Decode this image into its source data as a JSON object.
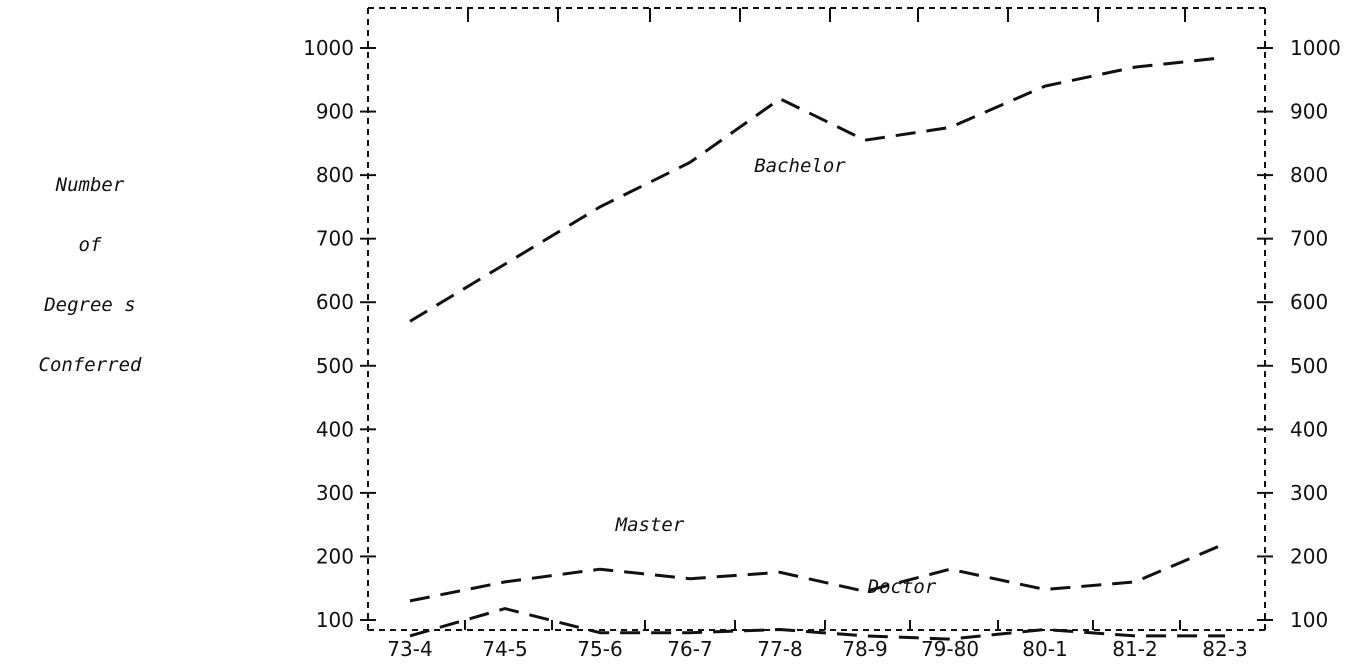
{
  "chart_data": {
    "type": "line",
    "title": "",
    "xlabel": "",
    "ylabel_lines": [
      "Number",
      "of",
      "Degree s",
      "Conferred"
    ],
    "categories": [
      "73-4",
      "74-5",
      "75-6",
      "76-7",
      "77-8",
      "78-9",
      "79-80",
      "80-1",
      "81-2",
      "82-3"
    ],
    "y_ticks": [
      100,
      200,
      300,
      400,
      500,
      600,
      700,
      800,
      900,
      1000
    ],
    "ylim": [
      0,
      1050
    ],
    "grid": false,
    "secondary_y_axis": true,
    "line_style": "dashed",
    "series": [
      {
        "name": "Bachelor",
        "values": [
          570,
          660,
          750,
          820,
          920,
          855,
          875,
          940,
          970,
          985
        ]
      },
      {
        "name": "Master",
        "values": [
          130,
          160,
          180,
          165,
          175,
          145,
          180,
          148,
          160,
          220
        ]
      },
      {
        "name": "Doctor",
        "values": [
          75,
          118,
          80,
          80,
          85,
          75,
          70,
          85,
          75,
          75
        ]
      }
    ]
  }
}
